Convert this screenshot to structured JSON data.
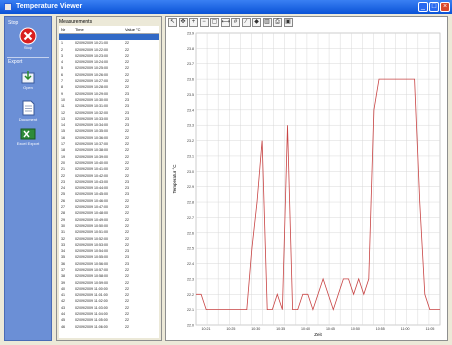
{
  "window": {
    "title": "Temperature Viewer"
  },
  "leftbar": {
    "sections": [
      {
        "label": "Stop"
      },
      {
        "label": "Export"
      }
    ],
    "buttons": [
      {
        "label": "Stop",
        "icon": "stop-icon"
      },
      {
        "label": "Open",
        "icon": "download-icon"
      },
      {
        "label": "Document",
        "icon": "document-icon"
      },
      {
        "label": "Excel Export",
        "icon": "excel-icon"
      }
    ]
  },
  "list": {
    "header": "Measurements",
    "columns": [
      "Nr",
      "Time",
      "Value °C"
    ],
    "rows": [
      {
        "nr": "",
        "time": "",
        "value": ""
      },
      {
        "nr": "1",
        "time": "02/09/2009 10:21:00",
        "value": "22"
      },
      {
        "nr": "2",
        "time": "02/09/2009 10:22:00",
        "value": "22"
      },
      {
        "nr": "3",
        "time": "02/09/2009 10:23:00",
        "value": "22"
      },
      {
        "nr": "4",
        "time": "02/09/2009 10:24:00",
        "value": "22"
      },
      {
        "nr": "5",
        "time": "02/09/2009 10:25:00",
        "value": "22"
      },
      {
        "nr": "6",
        "time": "02/09/2009 10:26:00",
        "value": "22"
      },
      {
        "nr": "7",
        "time": "02/09/2009 10:27:00",
        "value": "22"
      },
      {
        "nr": "8",
        "time": "02/09/2009 10:28:00",
        "value": "22"
      },
      {
        "nr": "9",
        "time": "02/09/2009 10:29:00",
        "value": "23"
      },
      {
        "nr": "10",
        "time": "02/09/2009 10:30:00",
        "value": "23"
      },
      {
        "nr": "11",
        "time": "02/09/2009 10:31:00",
        "value": "23"
      },
      {
        "nr": "12",
        "time": "02/09/2009 10:32:00",
        "value": "23"
      },
      {
        "nr": "13",
        "time": "02/09/2009 10:33:00",
        "value": "23"
      },
      {
        "nr": "14",
        "time": "02/09/2009 10:34:00",
        "value": "23"
      },
      {
        "nr": "15",
        "time": "02/09/2009 10:35:00",
        "value": "22"
      },
      {
        "nr": "16",
        "time": "02/09/2009 10:36:00",
        "value": "22"
      },
      {
        "nr": "17",
        "time": "02/09/2009 10:37:00",
        "value": "22"
      },
      {
        "nr": "18",
        "time": "02/09/2009 10:38:00",
        "value": "22"
      },
      {
        "nr": "19",
        "time": "02/09/2009 10:39:00",
        "value": "22"
      },
      {
        "nr": "20",
        "time": "02/09/2009 10:40:00",
        "value": "22"
      },
      {
        "nr": "21",
        "time": "02/09/2009 10:41:00",
        "value": "22"
      },
      {
        "nr": "22",
        "time": "02/09/2009 10:42:00",
        "value": "22"
      },
      {
        "nr": "23",
        "time": "02/09/2009 10:43:00",
        "value": "23"
      },
      {
        "nr": "24",
        "time": "02/09/2009 10:44:00",
        "value": "23"
      },
      {
        "nr": "25",
        "time": "02/09/2009 10:45:00",
        "value": "23"
      },
      {
        "nr": "26",
        "time": "02/09/2009 10:46:00",
        "value": "22"
      },
      {
        "nr": "27",
        "time": "02/09/2009 10:47:00",
        "value": "22"
      },
      {
        "nr": "28",
        "time": "02/09/2009 10:48:00",
        "value": "22"
      },
      {
        "nr": "29",
        "time": "02/09/2009 10:49:00",
        "value": "22"
      },
      {
        "nr": "30",
        "time": "02/09/2009 10:50:00",
        "value": "22"
      },
      {
        "nr": "31",
        "time": "02/09/2009 10:51:00",
        "value": "22"
      },
      {
        "nr": "32",
        "time": "02/09/2009 10:52:00",
        "value": "22"
      },
      {
        "nr": "33",
        "time": "02/09/2009 10:53:00",
        "value": "22"
      },
      {
        "nr": "34",
        "time": "02/09/2009 10:54:00",
        "value": "23"
      },
      {
        "nr": "35",
        "time": "02/09/2009 10:55:00",
        "value": "23"
      },
      {
        "nr": "36",
        "time": "02/09/2009 10:56:00",
        "value": "23"
      },
      {
        "nr": "37",
        "time": "02/09/2009 10:57:00",
        "value": "22"
      },
      {
        "nr": "38",
        "time": "02/09/2009 10:58:00",
        "value": "22"
      },
      {
        "nr": "39",
        "time": "02/09/2009 10:59:00",
        "value": "22"
      },
      {
        "nr": "40",
        "time": "02/09/2009 11:00:00",
        "value": "22"
      },
      {
        "nr": "41",
        "time": "02/09/2009 11:01:00",
        "value": "22"
      },
      {
        "nr": "42",
        "time": "02/09/2009 11:02:00",
        "value": "22"
      },
      {
        "nr": "43",
        "time": "02/09/2009 11:03:00",
        "value": "22"
      },
      {
        "nr": "44",
        "time": "02/09/2009 11:04:00",
        "value": "22"
      },
      {
        "nr": "45",
        "time": "02/09/2009 11:05:00",
        "value": "22"
      },
      {
        "nr": "46",
        "time": "02/09/2009 11:06:00",
        "value": "22"
      }
    ]
  },
  "toolbar": {
    "icons": [
      "cursor-icon",
      "pan-icon",
      "zoom-in-icon",
      "zoom-out-icon",
      "zoom-fit-icon",
      "measure-icon",
      "grid-icon",
      "line-icon",
      "marker-icon",
      "chart-icon",
      "print-icon",
      "save-icon"
    ]
  },
  "chart_data": {
    "type": "line",
    "xlabel": "Zeit",
    "ylabel": "Temperatur °C",
    "ylim": [
      22.0,
      23.9
    ],
    "yticks": [
      "23.9",
      "23.8",
      "23.7",
      "23.6",
      "23.5",
      "23.4",
      "23.3",
      "23.2",
      "23.1",
      "23.0",
      "22.9",
      "22.8",
      "22.7",
      "22.6",
      "22.5",
      "22.4",
      "22.3",
      "22.2",
      "22.1",
      "22.0"
    ],
    "xticks": [
      "10:21",
      "10:25",
      "10:30",
      "10:35",
      "10:40",
      "10:45",
      "10:50",
      "10:55",
      "11:00",
      "11:05"
    ],
    "x_range": [
      0,
      48
    ],
    "grid": true,
    "color": "#c84444",
    "series": [
      {
        "x": [
          0,
          1,
          2,
          3,
          4,
          5,
          6,
          7,
          8,
          9,
          10,
          11,
          12,
          13,
          14,
          15,
          16,
          17,
          18,
          19,
          20,
          21,
          22,
          23,
          24,
          25,
          26,
          27,
          28,
          29,
          30,
          31,
          32,
          33,
          34,
          35,
          36,
          37,
          38,
          39,
          40,
          41,
          42,
          43,
          44,
          45,
          46,
          47,
          48
        ],
        "y": [
          22.2,
          22.2,
          22.1,
          22.1,
          22.1,
          22.1,
          22.1,
          22.1,
          22.1,
          22.1,
          22.1,
          22.5,
          22.8,
          23.2,
          22.1,
          22.1,
          22.2,
          22.1,
          23.3,
          22.1,
          22.1,
          22.2,
          22.2,
          22.1,
          22.2,
          22.3,
          22.2,
          22.1,
          22.2,
          22.3,
          22.3,
          22.2,
          22.3,
          22.2,
          22.3,
          23.4,
          23.6,
          23.6,
          23.6,
          23.6,
          23.6,
          23.6,
          23.6,
          23.6,
          22.8,
          22.2,
          22.1,
          22.1,
          22.1
        ]
      }
    ]
  }
}
